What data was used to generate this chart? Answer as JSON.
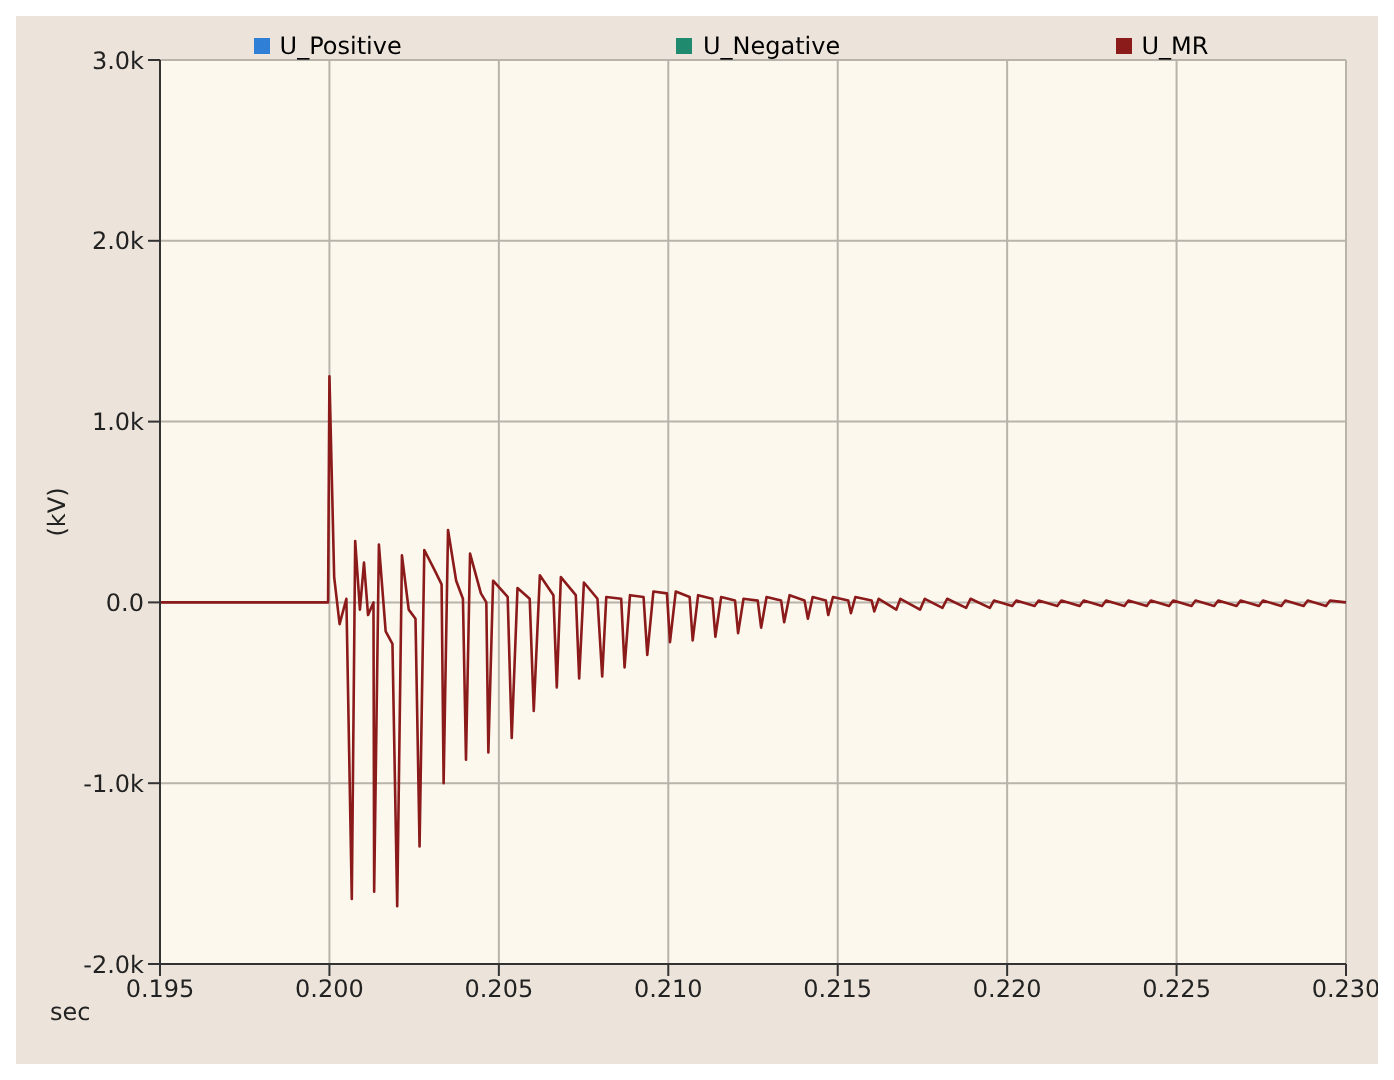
{
  "chart_data": {
    "type": "line",
    "xlabel": "sec",
    "ylabel": "(kV)",
    "xlim": [
      0.195,
      0.23
    ],
    "xticks": [
      0.195,
      {
        "value": 0.2,
        "label": "0.200"
      },
      0.205,
      {
        "value": 0.21,
        "label": "0.210"
      },
      0.215,
      {
        "value": 0.22,
        "label": "0.220"
      },
      0.225,
      {
        "value": 0.23,
        "label": "0.230"
      }
    ],
    "ylim": [
      -2000,
      3000
    ],
    "yticks": [
      {
        "value": -2000,
        "label": "-2.0k"
      },
      {
        "value": -1000,
        "label": "-1.0k"
      },
      {
        "value": 0,
        "label": "0.0"
      },
      {
        "value": 1000,
        "label": "1.0k"
      },
      {
        "value": 2000,
        "label": "2.0k"
      },
      {
        "value": 3000,
        "label": "3.0k"
      }
    ],
    "grid": true,
    "legend": "top",
    "marker": "none",
    "line_style": "solid",
    "series": [
      {
        "name": "U_Positive",
        "color": "#2f7fd6"
      },
      {
        "name": "U_Negative",
        "color": "#1f8a6e"
      },
      {
        "name": "U_MR",
        "color": "#8b1a1a",
        "x": [
          0.195,
          0.19996,
          0.2,
          0.20014,
          0.2003,
          0.2005,
          0.20066,
          0.20076,
          0.2009,
          0.20102,
          0.20114,
          0.2013,
          0.20132,
          0.20146,
          0.20166,
          0.20186,
          0.202,
          0.20214,
          0.20234,
          0.20254,
          0.20266,
          0.2028,
          0.2031,
          0.20331,
          0.20337,
          0.2035,
          0.20374,
          0.20394,
          0.20403,
          0.20415,
          0.20447,
          0.20463,
          0.20469,
          0.20483,
          0.20526,
          0.20538,
          0.20555,
          0.20591,
          0.20603,
          0.20621,
          0.20661,
          0.20671,
          0.20683,
          0.20727,
          0.20737,
          0.20751,
          0.20791,
          0.20805,
          0.20817,
          0.20861,
          0.20871,
          0.20887,
          0.20927,
          0.20938,
          0.20956,
          0.20996,
          0.21005,
          0.21022,
          0.21063,
          0.21072,
          0.21088,
          0.2113,
          0.21139,
          0.21156,
          0.21197,
          0.21206,
          0.21222,
          0.21264,
          0.21274,
          0.2129,
          0.21333,
          0.21342,
          0.21358,
          0.21402,
          0.21412,
          0.21426,
          0.21465,
          0.21472,
          0.21486,
          0.21531,
          0.21539,
          0.21552,
          0.216,
          0.21608,
          0.21621,
          0.21673,
          0.21685,
          0.21743,
          0.21757,
          0.21809,
          0.21823,
          0.21879,
          0.21892,
          0.21949,
          0.21961,
          0.22015,
          0.22027,
          0.22081,
          0.22093,
          0.22148,
          0.2216,
          0.22214,
          0.22226,
          0.2228,
          0.22292,
          0.22346,
          0.22358,
          0.22412,
          0.22424,
          0.22478,
          0.2249,
          0.22544,
          0.22556,
          0.22611,
          0.22623,
          0.22677,
          0.22689,
          0.22743,
          0.22755,
          0.22809,
          0.22821,
          0.22875,
          0.22887,
          0.22941,
          0.22953,
          0.23
        ],
        "values": [
          0,
          0,
          1250,
          140,
          -120,
          20,
          -1640,
          340,
          -40,
          220,
          -70,
          0,
          -1600,
          320,
          -160,
          -230,
          -1680,
          260,
          -40,
          -90,
          -1350,
          290,
          180,
          100,
          -1000,
          400,
          120,
          20,
          -870,
          270,
          50,
          0,
          -830,
          120,
          30,
          -750,
          80,
          20,
          -600,
          150,
          40,
          -470,
          140,
          40,
          -420,
          110,
          20,
          -410,
          30,
          20,
          -360,
          40,
          30,
          -290,
          60,
          50,
          -220,
          60,
          30,
          -210,
          40,
          20,
          -190,
          30,
          10,
          -170,
          20,
          10,
          -140,
          30,
          10,
          -110,
          40,
          10,
          -90,
          30,
          10,
          -70,
          30,
          10,
          -60,
          30,
          10,
          -50,
          20,
          -40,
          20,
          -40,
          20,
          -30,
          20,
          -30,
          20,
          -30,
          10,
          -20,
          10,
          -20,
          10,
          -20,
          10,
          -20,
          10,
          -20,
          10,
          -20,
          10,
          -20,
          10,
          -20,
          10,
          -20,
          10,
          -20,
          10,
          -20,
          10,
          -20,
          10,
          -20,
          10,
          -20,
          10,
          -20,
          10,
          0
        ]
      }
    ]
  }
}
